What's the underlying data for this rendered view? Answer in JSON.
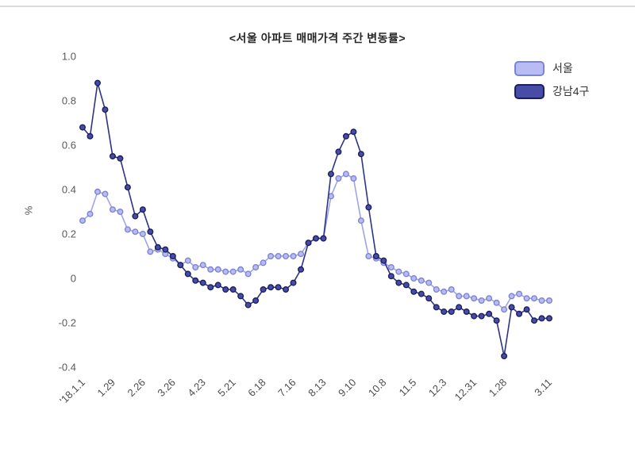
{
  "chart_data": {
    "type": "line",
    "title": "<서울 아파트 매매가격 주간 변동률>",
    "xlabel": "",
    "ylabel": "%",
    "ylim": [
      -0.4,
      1.0
    ],
    "yticks": [
      "1.0",
      "0.8",
      "0.6",
      "0.4",
      "0.2",
      "0",
      "-0.2",
      "-0.4"
    ],
    "grid": false,
    "legend_position": "top-right",
    "x_tick_labels": [
      "'18.1.1",
      "1.29",
      "2.26",
      "3.26",
      "4.23",
      "5.21",
      "6.18",
      "7.16",
      "8.13",
      "9.10",
      "10.8",
      "11.5",
      "12.3",
      "12.31",
      "1.28",
      "3.11"
    ],
    "x_tick_indices": [
      0,
      4,
      8,
      12,
      16,
      20,
      24,
      28,
      32,
      36,
      40,
      44,
      48,
      52,
      56,
      62
    ],
    "series": [
      {
        "name": "서울",
        "line_color": "#9fa4e6",
        "point_fill": "#b8bcf2",
        "point_stroke": "#7d84d6",
        "values": [
          0.26,
          0.29,
          0.39,
          0.38,
          0.31,
          0.3,
          0.22,
          0.21,
          0.2,
          0.12,
          0.13,
          0.11,
          0.09,
          0.06,
          0.08,
          0.05,
          0.06,
          0.04,
          0.04,
          0.03,
          0.03,
          0.04,
          0.02,
          0.05,
          0.07,
          0.1,
          0.1,
          0.1,
          0.1,
          0.11,
          0.16,
          0.18,
          0.18,
          0.37,
          0.45,
          0.47,
          0.45,
          0.26,
          0.1,
          0.09,
          0.07,
          0.05,
          0.03,
          0.02,
          0.0,
          -0.01,
          -0.02,
          -0.05,
          -0.06,
          -0.05,
          -0.08,
          -0.08,
          -0.09,
          -0.1,
          -0.09,
          -0.11,
          -0.14,
          -0.08,
          -0.07,
          -0.09,
          -0.09,
          -0.1,
          -0.1
        ]
      },
      {
        "name": "강남4구",
        "line_color": "#2e3385",
        "point_fill": "#474ca6",
        "point_stroke": "#1b1f5e",
        "values": [
          0.68,
          0.64,
          0.88,
          0.76,
          0.55,
          0.54,
          0.41,
          0.28,
          0.31,
          0.21,
          0.14,
          0.13,
          0.1,
          0.06,
          0.02,
          -0.01,
          -0.02,
          -0.04,
          -0.03,
          -0.05,
          -0.05,
          -0.08,
          -0.12,
          -0.1,
          -0.05,
          -0.04,
          -0.04,
          -0.05,
          -0.02,
          0.04,
          0.16,
          0.18,
          0.18,
          0.47,
          0.57,
          0.64,
          0.66,
          0.56,
          0.32,
          0.1,
          0.08,
          0.01,
          -0.02,
          -0.03,
          -0.06,
          -0.07,
          -0.09,
          -0.13,
          -0.15,
          -0.15,
          -0.13,
          -0.15,
          -0.17,
          -0.17,
          -0.16,
          -0.19,
          -0.35,
          -0.13,
          -0.16,
          -0.14,
          -0.19,
          -0.18,
          -0.18
        ]
      }
    ]
  }
}
